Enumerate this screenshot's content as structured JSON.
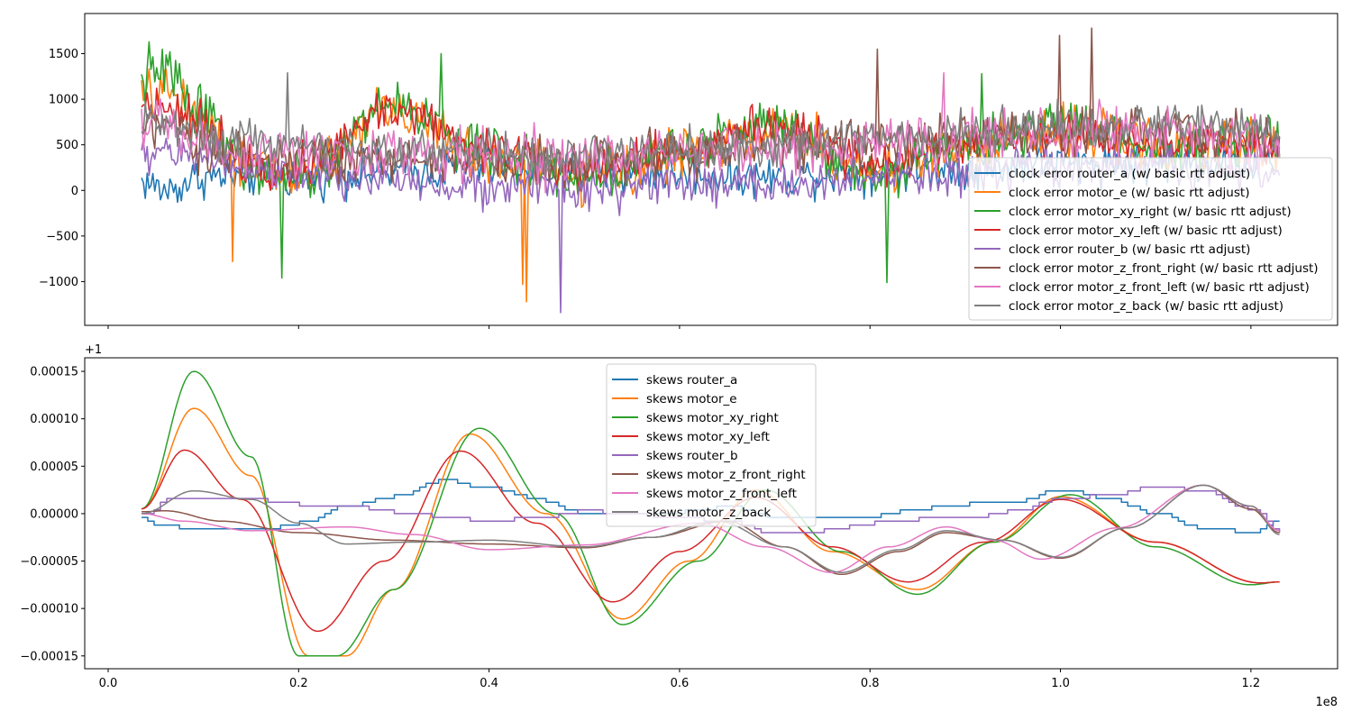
{
  "chart_data": [
    {
      "type": "line",
      "title": "",
      "xlabel": "",
      "ylabel": "",
      "x_scale_label": "",
      "xlim": [
        -0.0246,
        1.291
      ],
      "ylim": [
        -1480,
        1940
      ],
      "x_ticks": [
        0.0,
        0.2,
        0.4,
        0.6,
        0.8,
        1.0,
        1.2
      ],
      "x_tick_labels_visible": false,
      "y_ticks": [
        1500,
        1000,
        500,
        0,
        -500,
        -1000
      ],
      "y_tick_labels": [
        "1500",
        "1000",
        "500",
        "0",
        "−500",
        "−1000"
      ],
      "legend_position": "lower-right",
      "x_units_note": "x values in units of 1e8",
      "series": [
        {
          "name": "clock error router_a (w/ basic rtt adjust)",
          "color": "#1f77b4",
          "noise": 170,
          "x": [
            0.035,
            0.06,
            0.1,
            0.2,
            0.3,
            0.4,
            0.5,
            0.6,
            0.7,
            0.8,
            0.9,
            1.0,
            1.1,
            1.23
          ],
          "y": [
            100,
            0,
            150,
            150,
            200,
            250,
            200,
            180,
            150,
            200,
            250,
            300,
            300,
            300
          ]
        },
        {
          "name": "clock error motor_e (w/ basic rtt adjust)",
          "color": "#ff7f0e",
          "noise": 220,
          "x": [
            0.035,
            0.06,
            0.1,
            0.15,
            0.2,
            0.3,
            0.4,
            0.5,
            0.6,
            0.7,
            0.8,
            0.9,
            1.0,
            1.1,
            1.23
          ],
          "y": [
            1000,
            1100,
            800,
            250,
            150,
            900,
            350,
            150,
            400,
            650,
            250,
            450,
            700,
            500,
            500
          ]
        },
        {
          "name": "clock error motor_xy_right (w/ basic rtt adjust)",
          "color": "#2ca02c",
          "noise": 200,
          "x": [
            0.035,
            0.06,
            0.1,
            0.15,
            0.2,
            0.3,
            0.4,
            0.5,
            0.6,
            0.7,
            0.8,
            0.9,
            1.0,
            1.1,
            1.23
          ],
          "y": [
            1200,
            1300,
            900,
            200,
            100,
            950,
            400,
            150,
            450,
            750,
            200,
            500,
            750,
            500,
            550
          ]
        },
        {
          "name": "clock error motor_xy_left (w/ basic rtt adjust)",
          "color": "#d62728",
          "noise": 180,
          "x": [
            0.035,
            0.06,
            0.1,
            0.15,
            0.2,
            0.3,
            0.4,
            0.5,
            0.6,
            0.7,
            0.8,
            0.9,
            1.0,
            1.1,
            1.23
          ],
          "y": [
            950,
            950,
            700,
            300,
            250,
            900,
            450,
            250,
            450,
            700,
            300,
            500,
            650,
            500,
            500
          ]
        },
        {
          "name": "clock error router_b (w/ basic rtt adjust)",
          "color": "#9467bd",
          "noise": 170,
          "x": [
            0.035,
            0.06,
            0.1,
            0.2,
            0.3,
            0.4,
            0.5,
            0.6,
            0.7,
            0.8,
            0.9,
            1.0,
            1.1,
            1.23
          ],
          "y": [
            350,
            450,
            350,
            150,
            100,
            50,
            0,
            50,
            50,
            150,
            150,
            250,
            250,
            200
          ]
        },
        {
          "name": "clock error motor_z_front_right (w/ basic rtt adjust)",
          "color": "#8c564b",
          "noise": 200,
          "x": [
            0.035,
            0.06,
            0.1,
            0.2,
            0.3,
            0.4,
            0.5,
            0.6,
            0.7,
            0.8,
            0.9,
            1.0,
            1.1,
            1.23
          ],
          "y": [
            700,
            650,
            450,
            350,
            350,
            300,
            350,
            400,
            450,
            550,
            550,
            600,
            650,
            550
          ]
        },
        {
          "name": "clock error motor_z_front_left (w/ basic rtt adjust)",
          "color": "#e377c2",
          "noise": 220,
          "x": [
            0.035,
            0.06,
            0.1,
            0.2,
            0.3,
            0.4,
            0.5,
            0.6,
            0.7,
            0.8,
            0.9,
            1.0,
            1.1,
            1.23
          ],
          "y": [
            750,
            650,
            500,
            400,
            400,
            350,
            350,
            450,
            450,
            500,
            550,
            650,
            650,
            500
          ]
        },
        {
          "name": "clock error motor_z_back (w/ basic rtt adjust)",
          "color": "#7f7f7f",
          "noise": 170,
          "x": [
            0.035,
            0.06,
            0.1,
            0.2,
            0.3,
            0.4,
            0.5,
            0.6,
            0.7,
            0.8,
            0.9,
            1.0,
            1.1,
            1.23
          ],
          "y": [
            850,
            750,
            600,
            500,
            450,
            400,
            400,
            450,
            500,
            600,
            650,
            700,
            750,
            650
          ]
        }
      ],
      "spikes": [
        {
          "series": 2,
          "x": 0.042,
          "y": 1630
        },
        {
          "series": 7,
          "x": 0.189,
          "y": 1290
        },
        {
          "series": 2,
          "x": 0.182,
          "y": -960
        },
        {
          "series": 1,
          "x": 0.13,
          "y": -780
        },
        {
          "series": 2,
          "x": 0.35,
          "y": 1500
        },
        {
          "series": 1,
          "x": 0.44,
          "y": -1220
        },
        {
          "series": 4,
          "x": 0.475,
          "y": -1340
        },
        {
          "series": 1,
          "x": 0.435,
          "y": -1030
        },
        {
          "series": 5,
          "x": 0.808,
          "y": 1550
        },
        {
          "series": 2,
          "x": 0.818,
          "y": -1010
        },
        {
          "series": 5,
          "x": 0.998,
          "y": 1700
        },
        {
          "series": 5,
          "x": 1.033,
          "y": 1780
        },
        {
          "series": 6,
          "x": 0.878,
          "y": 1290
        },
        {
          "series": 2,
          "x": 0.918,
          "y": 1280
        }
      ]
    },
    {
      "type": "line",
      "title": "",
      "xlabel": "",
      "ylabel": "",
      "x_scale_label": "1e8",
      "y_offset_label": "+1",
      "xlim": [
        -0.0246,
        1.291
      ],
      "ylim": [
        -0.0001635,
        0.0001643
      ],
      "x_ticks": [
        0.0,
        0.2,
        0.4,
        0.6,
        0.8,
        1.0,
        1.2
      ],
      "x_tick_labels": [
        "0.0",
        "0.2",
        "0.4",
        "0.6",
        "0.8",
        "1.0",
        "1.2"
      ],
      "y_ticks": [
        0.00015,
        0.0001,
        5e-05,
        0.0,
        -5e-05,
        -0.0001,
        -0.00015
      ],
      "y_tick_labels": [
        "0.00015",
        "0.00010",
        "0.00005",
        "0.00000",
        "−0.00005",
        "−0.00010",
        "−0.00015"
      ],
      "legend_position": "upper-center",
      "y_units_note": "y values below are in units of 1e-5, relative to +1",
      "series": [
        {
          "name": "skews router_a",
          "color": "#1f77b4",
          "step": true,
          "x": [
            0.035,
            0.05,
            0.1,
            0.15,
            0.2,
            0.25,
            0.3,
            0.35,
            0.4,
            0.45,
            0.5,
            0.55,
            0.6,
            0.65,
            0.7,
            0.75,
            0.8,
            0.85,
            0.9,
            0.95,
            1.0,
            1.05,
            1.1,
            1.15,
            1.2,
            1.23
          ],
          "y": [
            -0.5,
            -1.2,
            -1.7,
            -1.8,
            -1.0,
            0.8,
            1.8,
            3.5,
            2.7,
            1.5,
            0.0,
            -0.2,
            0.2,
            0.7,
            -0.3,
            -0.5,
            -0.3,
            0.5,
            1.0,
            1.2,
            2.5,
            1.5,
            0.0,
            -1.5,
            -2.0,
            -0.8
          ]
        },
        {
          "name": "skews motor_e",
          "color": "#ff7f0e",
          "x": [
            0.035,
            0.09,
            0.15,
            0.21,
            0.25,
            0.3,
            0.38,
            0.46,
            0.54,
            0.61,
            0.68,
            0.76,
            0.85,
            0.93,
            1.0,
            1.1,
            1.21,
            1.23
          ],
          "y": [
            0.5,
            11.1,
            4.0,
            -15.0,
            -15.0,
            -8.0,
            8.4,
            0.0,
            -11.1,
            -5.0,
            2.5,
            -4.0,
            -8.0,
            -3.0,
            1.8,
            -3.0,
            -7.3,
            -7.2
          ]
        },
        {
          "name": "skews motor_xy_right",
          "color": "#2ca02c",
          "x": [
            0.035,
            0.09,
            0.15,
            0.2,
            0.24,
            0.3,
            0.39,
            0.47,
            0.54,
            0.62,
            0.69,
            0.77,
            0.85,
            0.93,
            1.01,
            1.1,
            1.2,
            1.23
          ],
          "y": [
            0.5,
            15.0,
            6.0,
            -15.0,
            -15.0,
            -8.0,
            9.0,
            0.0,
            -11.7,
            -5.0,
            2.5,
            -4.0,
            -8.5,
            -3.0,
            2.0,
            -3.5,
            -7.5,
            -7.2
          ]
        },
        {
          "name": "skews motor_xy_left",
          "color": "#d62728",
          "x": [
            0.035,
            0.08,
            0.14,
            0.22,
            0.29,
            0.37,
            0.45,
            0.53,
            0.6,
            0.68,
            0.76,
            0.84,
            0.92,
            1.0,
            1.1,
            1.21,
            1.23
          ],
          "y": [
            0.5,
            6.7,
            1.5,
            -12.4,
            -5.0,
            6.6,
            -1.0,
            -9.3,
            -4.0,
            1.7,
            -3.5,
            -7.2,
            -3.0,
            1.5,
            -3.0,
            -7.3,
            -7.2
          ]
        },
        {
          "name": "skews router_b",
          "color": "#9467bd",
          "step": true,
          "x": [
            0.035,
            0.07,
            0.1,
            0.15,
            0.2,
            0.25,
            0.3,
            0.35,
            0.4,
            0.45,
            0.5,
            0.55,
            0.6,
            0.65,
            0.7,
            0.75,
            0.8,
            0.85,
            0.9,
            0.95,
            1.0,
            1.05,
            1.1,
            1.15,
            1.2,
            1.23
          ],
          "y": [
            0.0,
            1.8,
            1.5,
            1.5,
            1.0,
            0.8,
            0.2,
            -0.3,
            -0.8,
            -0.4,
            0.3,
            0.0,
            -0.5,
            -0.8,
            -2.2,
            -1.8,
            -1.0,
            -0.6,
            -0.5,
            0.3,
            1.5,
            2.0,
            2.8,
            2.5,
            0.5,
            -2.0
          ]
        },
        {
          "name": "skews motor_z_front_right",
          "color": "#8c564b",
          "x": [
            0.035,
            0.06,
            0.12,
            0.2,
            0.3,
            0.4,
            0.5,
            0.57,
            0.65,
            0.71,
            0.77,
            0.83,
            0.88,
            0.94,
            1.0,
            1.07,
            1.15,
            1.2,
            1.23
          ],
          "y": [
            0.2,
            0.3,
            -0.8,
            -2.0,
            -2.8,
            -3.2,
            -3.6,
            -2.5,
            -0.8,
            -3.5,
            -6.4,
            -4.0,
            -2.0,
            -2.8,
            -4.7,
            -1.5,
            3.0,
            0.5,
            -2.0
          ]
        },
        {
          "name": "skews motor_z_front_left",
          "color": "#e377c2",
          "x": [
            0.035,
            0.08,
            0.15,
            0.25,
            0.32,
            0.4,
            0.5,
            0.62,
            0.69,
            0.76,
            0.82,
            0.88,
            0.93,
            0.98,
            1.06,
            1.15,
            1.2,
            1.23
          ],
          "y": [
            0.0,
            -0.8,
            -1.8,
            -1.4,
            -2.2,
            -3.8,
            -3.3,
            -1.0,
            -3.5,
            -6.2,
            -3.5,
            -1.4,
            -2.8,
            -4.8,
            -1.5,
            3.0,
            0.8,
            -1.8
          ]
        },
        {
          "name": "skews motor_z_back",
          "color": "#7f7f7f",
          "x": [
            0.035,
            0.09,
            0.15,
            0.2,
            0.25,
            0.32,
            0.4,
            0.5,
            0.57,
            0.64,
            0.71,
            0.77,
            0.83,
            0.88,
            0.94,
            1.0,
            1.07,
            1.15,
            1.2,
            1.23
          ],
          "y": [
            0.0,
            2.4,
            1.5,
            -1.0,
            -3.2,
            -3.0,
            -2.8,
            -3.5,
            -2.5,
            -0.8,
            -3.5,
            -6.2,
            -3.8,
            -1.8,
            -2.8,
            -4.6,
            -1.5,
            3.0,
            0.8,
            -2.2
          ]
        }
      ]
    }
  ]
}
